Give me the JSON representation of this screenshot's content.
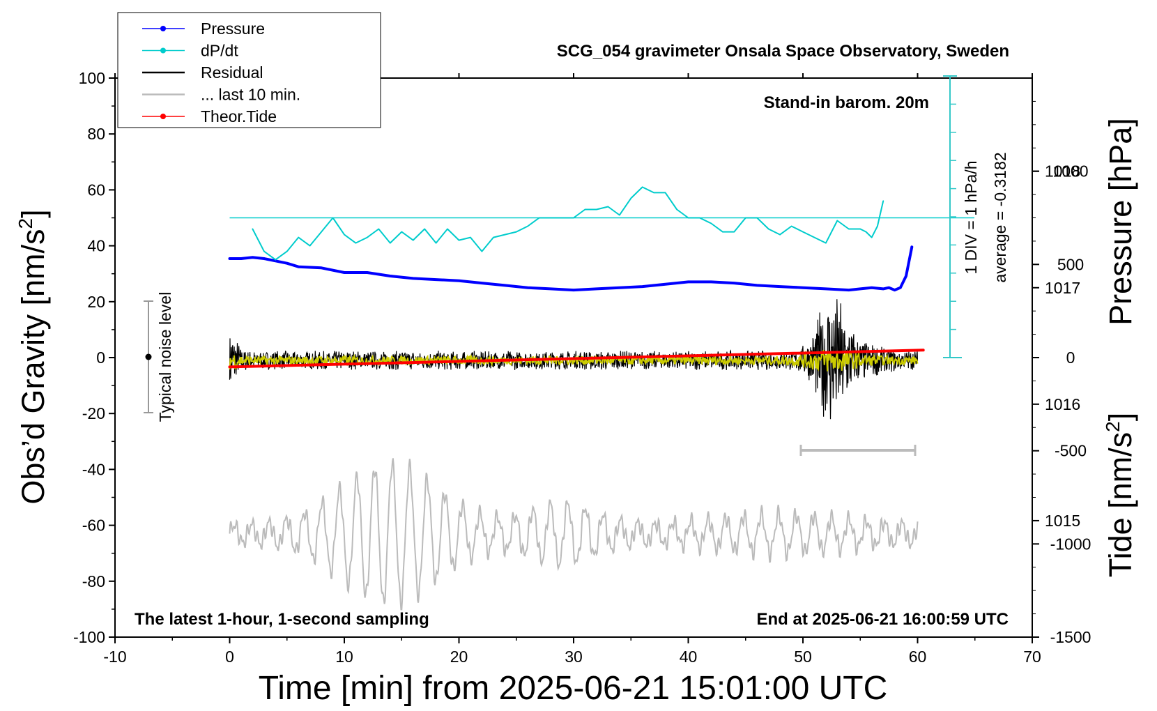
{
  "chart_data": {
    "type": "line",
    "title": "SCG_054 gravimeter Onsala Space Observatory, Sweden",
    "xlabel": "Time [min] from 2025-06-21 15:01:00 UTC",
    "ylabel_left": "Obs’d Gravity [nm/s",
    "ylabel_left_sup": "2",
    "ylabel_left_end": "]",
    "ylabel_right_pressure": "Pressure [hPa]",
    "ylabel_right_tide": "Tide [nm/s",
    "ylabel_right_tide_sup": "2",
    "ylabel_right_tide_end": "]",
    "xlim": [
      -10,
      70
    ],
    "ylim_left": [
      -100,
      100
    ],
    "pressure_ylim": [
      1014.0,
      1018.8
    ],
    "tide_ylim": [
      -1500,
      1500
    ],
    "grid": false,
    "legend_position": "top-left",
    "x_ticks": [
      "-10",
      "0",
      "10",
      "20",
      "30",
      "40",
      "50",
      "60",
      "70"
    ],
    "y_left_ticks": [
      "100",
      "80",
      "60",
      "40",
      "20",
      "0",
      "-20",
      "-40",
      "-60",
      "-80",
      "-100"
    ],
    "pressure_ticks": [
      "1018",
      "1017",
      "1016",
      "1015"
    ],
    "tide_ticks": [
      "1000",
      "500",
      "0",
      "-500",
      "-1000",
      "-1500"
    ],
    "annotations": {
      "stand_in": "Stand-in barom. 20m",
      "div": "1 DIV = 1 hPa/h",
      "average": "average = -0.3182",
      "latest": "The latest 1-hour, 1-second sampling",
      "end_at": "End at 2025-06-21 16:00:59 UTC",
      "noise": "Typical noise level"
    },
    "legend": [
      {
        "label": "Pressure",
        "color": "#0000ff",
        "marker": true
      },
      {
        "label": "dP/dt",
        "color": "#00cccc",
        "marker": true
      },
      {
        "label": "Residual",
        "color": "#000000",
        "marker": false
      },
      {
        "label": "... last 10 min.",
        "color": "#bbbbbb",
        "marker": false
      },
      {
        "label": "Theor.Tide",
        "color": "#ff0000",
        "marker": true
      }
    ],
    "series": [
      {
        "name": "Pressure",
        "axis": "pressure",
        "color": "#0000ff",
        "x": [
          0,
          1,
          2,
          3,
          4,
          5,
          6,
          8,
          10,
          12,
          14,
          16,
          18,
          20,
          22,
          24,
          26,
          28,
          30,
          32,
          34,
          36,
          38,
          40,
          42,
          44,
          46,
          48,
          50,
          52,
          54,
          55,
          56,
          57,
          57.5,
          58,
          58.5,
          59,
          59.5
        ],
        "y": [
          1017.25,
          1017.25,
          1017.26,
          1017.25,
          1017.23,
          1017.21,
          1017.18,
          1017.17,
          1017.13,
          1017.13,
          1017.1,
          1017.08,
          1017.07,
          1017.06,
          1017.04,
          1017.02,
          1017.0,
          1016.99,
          1016.98,
          1016.99,
          1017.0,
          1017.01,
          1017.03,
          1017.05,
          1017.05,
          1017.04,
          1017.02,
          1017.01,
          1017.0,
          1016.99,
          1016.98,
          1016.99,
          1017.0,
          1016.99,
          1017.0,
          1016.98,
          1017.0,
          1017.1,
          1017.35
        ]
      },
      {
        "name": "dP/dt",
        "axis": "left",
        "color": "#00cccc",
        "baseline": 50,
        "x": [
          2,
          3,
          4,
          5,
          6,
          7,
          8,
          9,
          10,
          11,
          12,
          13,
          14,
          15,
          16,
          17,
          18,
          19,
          20,
          21,
          22,
          23,
          24,
          25,
          26,
          27,
          28,
          29,
          30,
          31,
          32,
          33,
          34,
          35,
          36,
          37,
          38,
          39,
          40,
          41,
          42,
          43,
          44,
          45,
          46,
          47,
          48,
          49,
          50,
          51,
          52,
          53,
          54,
          55,
          55.5,
          56,
          56.5,
          57
        ],
        "y": [
          46,
          38,
          35,
          38,
          43,
          40,
          45,
          50,
          44,
          41,
          43,
          46,
          41,
          45,
          42,
          46,
          41,
          46,
          42,
          43,
          38,
          43,
          44,
          45,
          47,
          50,
          50,
          50,
          50,
          53,
          53,
          54,
          51,
          57,
          61,
          59,
          59,
          53,
          50,
          50,
          48,
          45,
          45,
          50,
          50,
          46,
          44,
          47,
          45,
          43,
          41,
          49,
          46,
          46,
          45,
          43,
          47,
          56
        ]
      },
      {
        "name": "Theor.Tide",
        "axis": "tide",
        "color": "#ff0000",
        "x": [
          0,
          60.5
        ],
        "y": [
          -50,
          40
        ]
      }
    ]
  }
}
